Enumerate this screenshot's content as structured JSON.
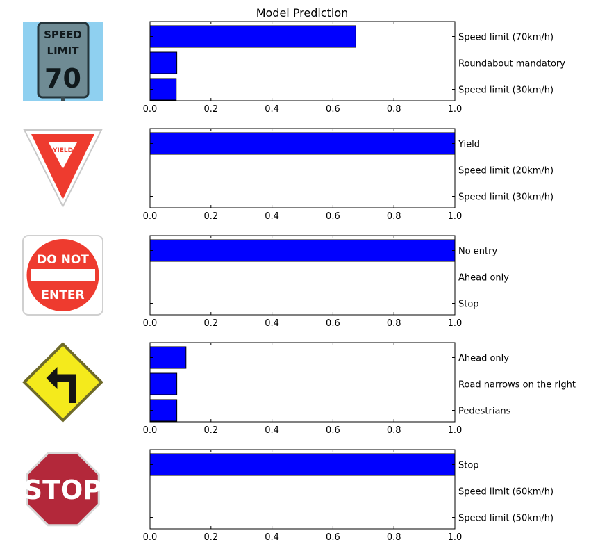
{
  "title": "Model Prediction",
  "chart_data": [
    {
      "type": "bar",
      "orientation": "horizontal",
      "image_icon": "speed-limit-70-sign-icon",
      "sign_text": [
        "SPEED",
        "LIMIT",
        "70"
      ],
      "categories": [
        "Speed limit (70km/h)",
        "Roundabout mandatory",
        "Speed limit (30km/h)"
      ],
      "values": [
        0.675,
        0.088,
        0.086
      ],
      "xlim": [
        0,
        1.0
      ],
      "xticks": [
        "0.0",
        "0.2",
        "0.4",
        "0.6",
        "0.8",
        "1.0"
      ],
      "bar_color": "#0000ff",
      "grid": false
    },
    {
      "type": "bar",
      "orientation": "horizontal",
      "image_icon": "yield-sign-icon",
      "sign_text": [
        "YIELD"
      ],
      "categories": [
        "Yield",
        "Speed limit (20km/h)",
        "Speed limit (30km/h)"
      ],
      "values": [
        1.0,
        0.0,
        0.0
      ],
      "xlim": [
        0,
        1.0
      ],
      "xticks": [
        "0.0",
        "0.2",
        "0.4",
        "0.6",
        "0.8",
        "1.0"
      ],
      "bar_color": "#0000ff",
      "grid": false
    },
    {
      "type": "bar",
      "orientation": "horizontal",
      "image_icon": "do-not-enter-sign-icon",
      "sign_text": [
        "DO NOT",
        "ENTER"
      ],
      "categories": [
        "No entry",
        "Ahead only",
        "Stop"
      ],
      "values": [
        1.0,
        0.0,
        0.0
      ],
      "xlim": [
        0,
        1.0
      ],
      "xticks": [
        "0.0",
        "0.2",
        "0.4",
        "0.6",
        "0.8",
        "1.0"
      ],
      "bar_color": "#0000ff",
      "grid": false
    },
    {
      "type": "bar",
      "orientation": "horizontal",
      "image_icon": "left-turn-arrow-sign-icon",
      "sign_text": [],
      "categories": [
        "Ahead only",
        "Road narrows on the right",
        "Pedestrians"
      ],
      "values": [
        0.118,
        0.088,
        0.088
      ],
      "xlim": [
        0,
        1.0
      ],
      "xticks": [
        "0.0",
        "0.2",
        "0.4",
        "0.6",
        "0.8",
        "1.0"
      ],
      "bar_color": "#0000ff",
      "grid": false
    },
    {
      "type": "bar",
      "orientation": "horizontal",
      "image_icon": "stop-sign-icon",
      "sign_text": [
        "STOP"
      ],
      "categories": [
        "Stop",
        "Speed limit (60km/h)",
        "Speed limit (50km/h)"
      ],
      "values": [
        1.0,
        0.0,
        0.0
      ],
      "xlim": [
        0,
        1.0
      ],
      "xticks": [
        "0.0",
        "0.2",
        "0.4",
        "0.6",
        "0.8",
        "1.0"
      ],
      "bar_color": "#0000ff",
      "grid": false
    }
  ]
}
